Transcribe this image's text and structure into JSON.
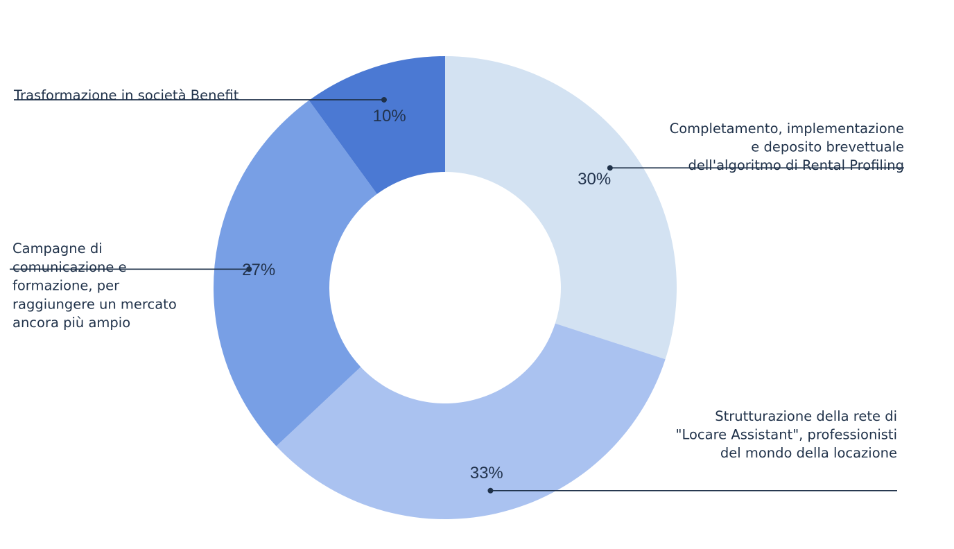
{
  "chart_data": {
    "type": "pie",
    "donut": true,
    "series": [
      {
        "label_lines": [
          "Completamento, implementazione",
          "e deposito brevettuale",
          "dell'algoritmo di Rental Profiling"
        ],
        "value": 30,
        "value_label": "30%",
        "color": "#d3e2f2"
      },
      {
        "label_lines": [
          "Strutturazione della rete di",
          "\"Locare Assistant\", professionisti",
          "del mondo della locazione"
        ],
        "value": 33,
        "value_label": "33%",
        "color": "#aac2f0"
      },
      {
        "label_lines": [
          "Campagne di",
          "comunicazione e",
          "formazione, per",
          "raggiungere un mercato",
          "ancora più ampio"
        ],
        "value": 27,
        "value_label": "27%",
        "color": "#789fe5"
      },
      {
        "label_lines": [
          "Trasformazione in società Benefit"
        ],
        "value": 10,
        "value_label": "10%",
        "color": "#4b79d3"
      }
    ],
    "legend": "none",
    "text_color": "#1f3149"
  }
}
